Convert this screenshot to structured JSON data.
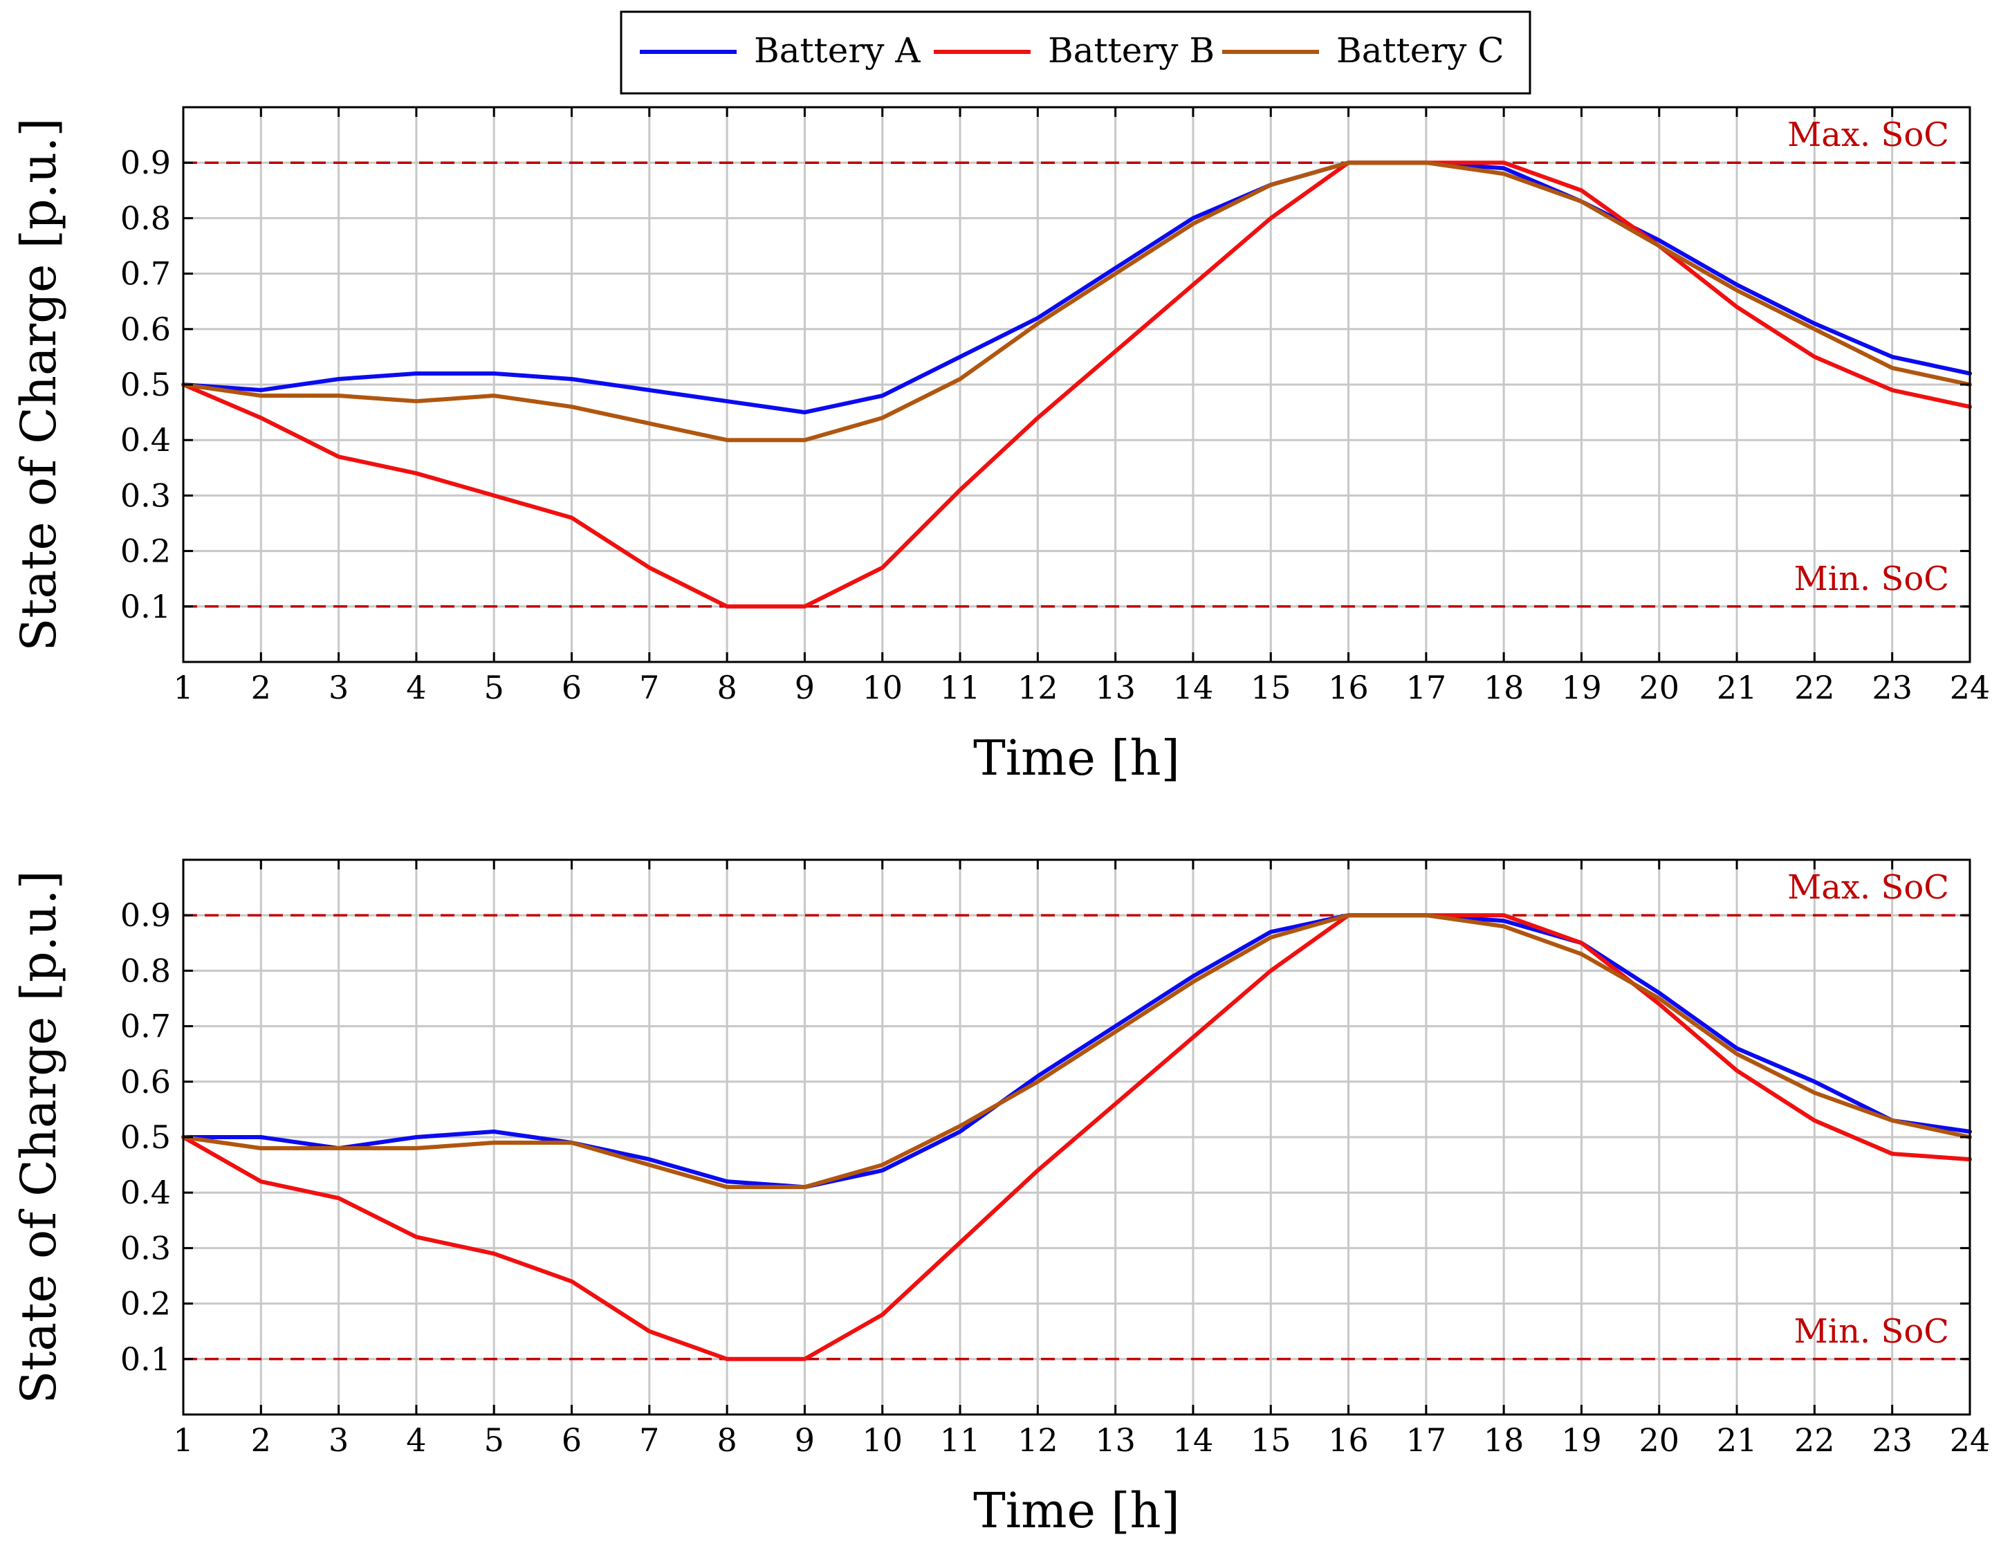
{
  "legend": {
    "entries": [
      {
        "label": "Battery A",
        "color": "#0b0bf0"
      },
      {
        "label": "Battery B",
        "color": "#f01010"
      },
      {
        "label": "Battery C",
        "color": "#b0560f"
      }
    ]
  },
  "chart_data": [
    {
      "type": "line",
      "title": "",
      "xlabel": "Time [h]",
      "ylabel": "State of Charge [p.u.]",
      "xlim": [
        1,
        24
      ],
      "ylim": [
        0,
        1.0
      ],
      "x": [
        1,
        2,
        3,
        4,
        5,
        6,
        7,
        8,
        9,
        10,
        11,
        12,
        13,
        14,
        15,
        16,
        17,
        18,
        19,
        20,
        21,
        22,
        23,
        24
      ],
      "xticks": [
        "1",
        "2",
        "3",
        "4",
        "5",
        "6",
        "7",
        "8",
        "9",
        "10",
        "11",
        "12",
        "13",
        "14",
        "15",
        "16",
        "17",
        "18",
        "19",
        "20",
        "21",
        "22",
        "23",
        "24"
      ],
      "yticks": [
        0.1,
        0.2,
        0.3,
        0.4,
        0.5,
        0.6,
        0.7,
        0.8,
        0.9
      ],
      "ytick_labels": [
        "0.1",
        "0.2",
        "0.3",
        "0.4",
        "0.5",
        "0.6",
        "0.7",
        "0.8",
        "0.9"
      ],
      "grid": true,
      "reference_lines": [
        {
          "label": "Max. SoC",
          "y": 0.9,
          "color": "#c00000"
        },
        {
          "label": "Min. SoC",
          "y": 0.1,
          "color": "#c00000"
        }
      ],
      "series": [
        {
          "name": "Battery A",
          "color": "#0b0bf0",
          "values": [
            0.5,
            0.49,
            0.51,
            0.52,
            0.52,
            0.51,
            0.49,
            0.47,
            0.45,
            0.48,
            0.55,
            0.62,
            0.71,
            0.8,
            0.86,
            0.9,
            0.9,
            0.89,
            0.83,
            0.76,
            0.68,
            0.61,
            0.55,
            0.52
          ]
        },
        {
          "name": "Battery B",
          "color": "#f01010",
          "values": [
            0.5,
            0.44,
            0.37,
            0.34,
            0.3,
            0.26,
            0.17,
            0.1,
            0.1,
            0.17,
            0.31,
            0.44,
            0.56,
            0.68,
            0.8,
            0.9,
            0.9,
            0.9,
            0.85,
            0.75,
            0.64,
            0.55,
            0.49,
            0.46
          ]
        },
        {
          "name": "Battery C",
          "color": "#b0560f",
          "values": [
            0.5,
            0.48,
            0.48,
            0.47,
            0.48,
            0.46,
            0.43,
            0.4,
            0.4,
            0.44,
            0.51,
            0.61,
            0.7,
            0.79,
            0.86,
            0.9,
            0.9,
            0.88,
            0.83,
            0.75,
            0.67,
            0.6,
            0.53,
            0.5
          ]
        }
      ]
    },
    {
      "type": "line",
      "title": "",
      "xlabel": "Time [h]",
      "ylabel": "State of Charge [p.u.]",
      "xlim": [
        1,
        24
      ],
      "ylim": [
        0,
        1.0
      ],
      "x": [
        1,
        2,
        3,
        4,
        5,
        6,
        7,
        8,
        9,
        10,
        11,
        12,
        13,
        14,
        15,
        16,
        17,
        18,
        19,
        20,
        21,
        22,
        23,
        24
      ],
      "xticks": [
        "1",
        "2",
        "3",
        "4",
        "5",
        "6",
        "7",
        "8",
        "9",
        "10",
        "11",
        "12",
        "13",
        "14",
        "15",
        "16",
        "17",
        "18",
        "19",
        "20",
        "21",
        "22",
        "23",
        "24"
      ],
      "yticks": [
        0.1,
        0.2,
        0.3,
        0.4,
        0.5,
        0.6,
        0.7,
        0.8,
        0.9
      ],
      "ytick_labels": [
        "0.1",
        "0.2",
        "0.3",
        "0.4",
        "0.5",
        "0.6",
        "0.7",
        "0.8",
        "0.9"
      ],
      "grid": true,
      "reference_lines": [
        {
          "label": "Max. SoC",
          "y": 0.9,
          "color": "#c00000"
        },
        {
          "label": "Min. SoC",
          "y": 0.1,
          "color": "#c00000"
        }
      ],
      "series": [
        {
          "name": "Battery A",
          "color": "#0b0bf0",
          "values": [
            0.5,
            0.5,
            0.48,
            0.5,
            0.51,
            0.49,
            0.46,
            0.42,
            0.41,
            0.44,
            0.51,
            0.61,
            0.7,
            0.79,
            0.87,
            0.9,
            0.9,
            0.89,
            0.85,
            0.76,
            0.66,
            0.6,
            0.53,
            0.51
          ]
        },
        {
          "name": "Battery B",
          "color": "#f01010",
          "values": [
            0.5,
            0.42,
            0.39,
            0.32,
            0.29,
            0.24,
            0.15,
            0.1,
            0.1,
            0.18,
            0.31,
            0.44,
            0.56,
            0.68,
            0.8,
            0.9,
            0.9,
            0.9,
            0.85,
            0.74,
            0.62,
            0.53,
            0.47,
            0.46
          ]
        },
        {
          "name": "Battery C",
          "color": "#b0560f",
          "values": [
            0.5,
            0.48,
            0.48,
            0.48,
            0.49,
            0.49,
            0.45,
            0.41,
            0.41,
            0.45,
            0.52,
            0.6,
            0.69,
            0.78,
            0.86,
            0.9,
            0.9,
            0.88,
            0.83,
            0.75,
            0.65,
            0.58,
            0.53,
            0.5
          ]
        }
      ]
    }
  ]
}
